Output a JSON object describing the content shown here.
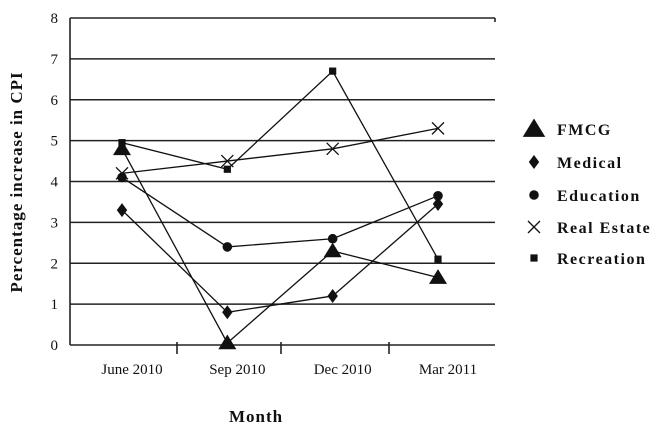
{
  "chart_data": {
    "type": "line",
    "title": "",
    "xlabel": "Month",
    "ylabel": "Percentage increase in CPI",
    "categories": [
      "June 2010",
      "Sep 2010",
      "Dec 2010",
      "Mar 2011"
    ],
    "ylim": [
      0,
      8
    ],
    "yticks": [
      0,
      1,
      2,
      3,
      4,
      5,
      6,
      7,
      8
    ],
    "grid": true,
    "legend_position": "right",
    "series": [
      {
        "name": "FMCG",
        "marker": "triangle",
        "values": [
          4.8,
          0.05,
          2.3,
          1.65
        ]
      },
      {
        "name": "Medical",
        "marker": "diamond",
        "values": [
          3.3,
          0.8,
          1.2,
          3.45
        ]
      },
      {
        "name": "Education",
        "marker": "circle",
        "values": [
          4.1,
          2.4,
          2.6,
          3.65
        ]
      },
      {
        "name": "Real Estate",
        "marker": "cross",
        "values": [
          4.2,
          4.5,
          4.8,
          5.3
        ]
      },
      {
        "name": "Recreation",
        "marker": "square",
        "values": [
          4.95,
          4.3,
          6.7,
          2.1
        ]
      }
    ]
  }
}
